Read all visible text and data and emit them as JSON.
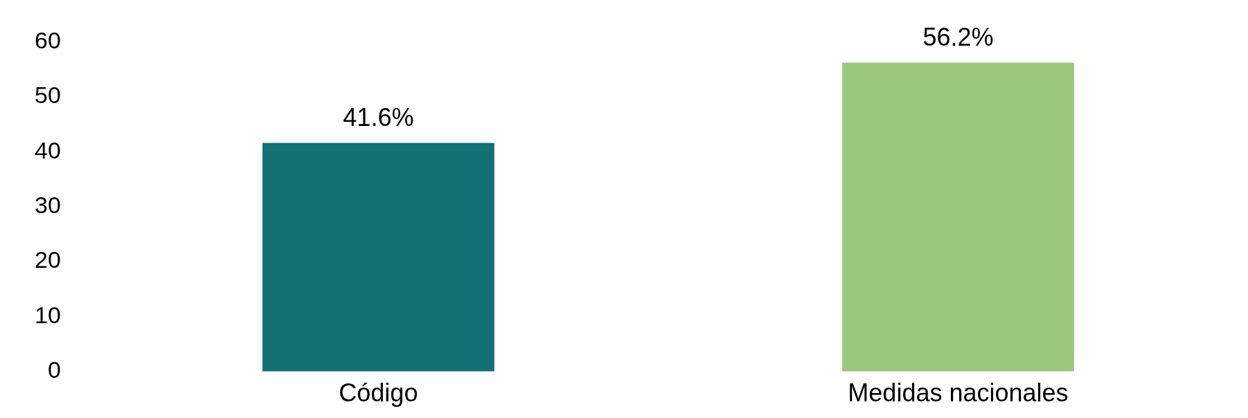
{
  "chart_data": {
    "type": "bar",
    "categories": [
      "Código",
      "Medidas nacionales"
    ],
    "series": [
      {
        "colors": [
          "#137074",
          "#9bc77e"
        ],
        "values": [
          41.6,
          56.2
        ],
        "value_labels": [
          "41.6%",
          "56.2%"
        ]
      }
    ],
    "ylim": [
      0,
      60
    ],
    "yticks": [
      0,
      10,
      20,
      30,
      40,
      50,
      60
    ],
    "grid": false,
    "legend": false
  }
}
